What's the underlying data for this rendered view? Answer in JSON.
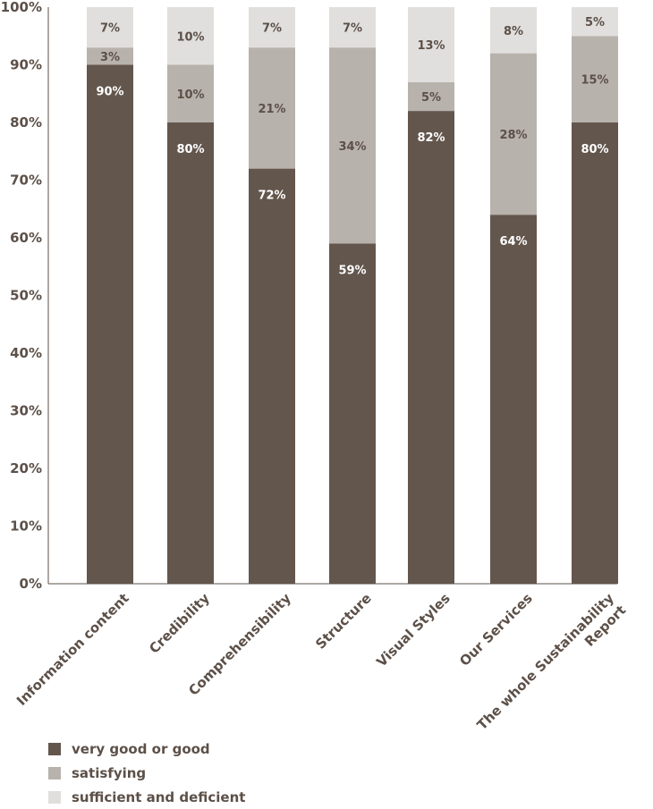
{
  "chart_data": {
    "type": "bar",
    "stacked": true,
    "categories": [
      "Information content",
      "Credibility",
      "Comprehensibility",
      "Structure",
      "Visual Styles",
      "Our Services",
      "The whole Sustainability Report"
    ],
    "category_lines": [
      [
        "Information content"
      ],
      [
        "Credibility"
      ],
      [
        "Comprehensibility"
      ],
      [
        "Structure"
      ],
      [
        "Visual Styles"
      ],
      [
        "Our Services"
      ],
      [
        "The whole Sustainability",
        "Report"
      ]
    ],
    "series": [
      {
        "name": "very good or good",
        "values": [
          90,
          80,
          72,
          59,
          82,
          64,
          80
        ],
        "labels": [
          "90%",
          "80%",
          "72%",
          "59%",
          "82%",
          "64%",
          "80%"
        ],
        "color": "#63564d",
        "label_color": "#ffffff"
      },
      {
        "name": "satisfying",
        "values": [
          3,
          10,
          21,
          34,
          5,
          28,
          15
        ],
        "labels": [
          "3%",
          "10%",
          "21%",
          "34%",
          "5%",
          "28%",
          "15%"
        ],
        "color": "#b8b2ac",
        "label_color": "#5c5048"
      },
      {
        "name": "sufficient and deficient",
        "values": [
          7,
          10,
          7,
          7,
          13,
          8,
          5
        ],
        "labels": [
          "7%",
          "10%",
          "7%",
          "7%",
          "13%",
          "8%",
          "5%"
        ],
        "color": "#e0dfdd",
        "label_color": "#5c5048"
      }
    ],
    "ylim": [
      0,
      100
    ],
    "yticks": [
      0,
      10,
      20,
      30,
      40,
      50,
      60,
      70,
      80,
      90,
      100
    ],
    "ytick_labels": [
      "0%",
      "10%",
      "20%",
      "30%",
      "40%",
      "50%",
      "60%",
      "70%",
      "80%",
      "90%",
      "100%"
    ],
    "title": "",
    "xlabel": "",
    "ylabel": "",
    "grid": false,
    "legend_position": "bottom-left"
  }
}
